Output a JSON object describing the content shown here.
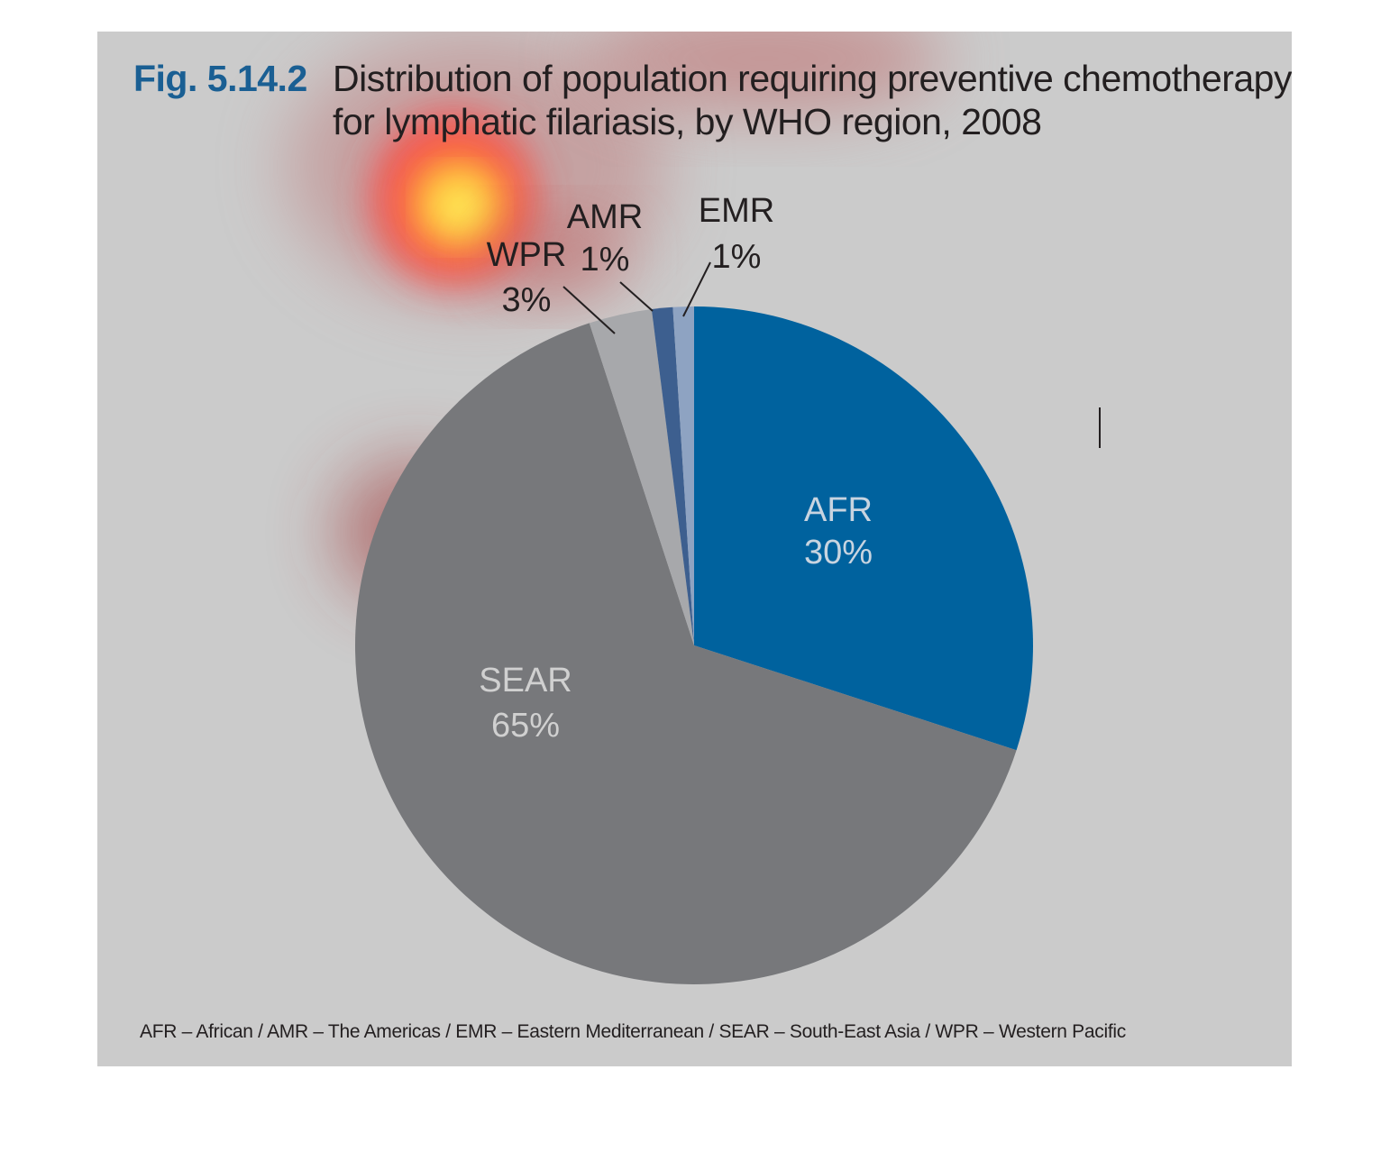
{
  "figure": {
    "number": "Fig. 5.14.2",
    "title_line1": "Distribution of population requiring preventive chemotherapy",
    "title_line2": "for lymphatic filariasis, by WHO region, 2008",
    "footnote": "AFR – African / AMR – The Americas / EMR – Eastern Mediterranean / SEAR – South-East Asia / WPR – Western Pacific"
  },
  "colors": {
    "background": "#cbcbcb",
    "title_accent": "#1a5f93"
  },
  "chart_data": {
    "type": "pie",
    "title": "Distribution of population requiring preventive chemotherapy for lymphatic filariasis, by WHO region, 2008",
    "slices": [
      {
        "label": "AFR",
        "value": 30,
        "value_label": "30%",
        "color": "#00629e",
        "label_color": "#c8d4e0"
      },
      {
        "label": "SEAR",
        "value": 65,
        "value_label": "65%",
        "color": "#77787b",
        "label_color": "#d0d0d0"
      },
      {
        "label": "WPR",
        "value": 3,
        "value_label": "3%",
        "color": "#a7a8ab",
        "label_color": "#231f20"
      },
      {
        "label": "AMR",
        "value": 1,
        "value_label": "1%",
        "color": "#3d5f8f",
        "label_color": "#231f20"
      },
      {
        "label": "EMR",
        "value": 1,
        "value_label": "1%",
        "color": "#8ea3c2",
        "label_color": "#231f20"
      }
    ]
  }
}
